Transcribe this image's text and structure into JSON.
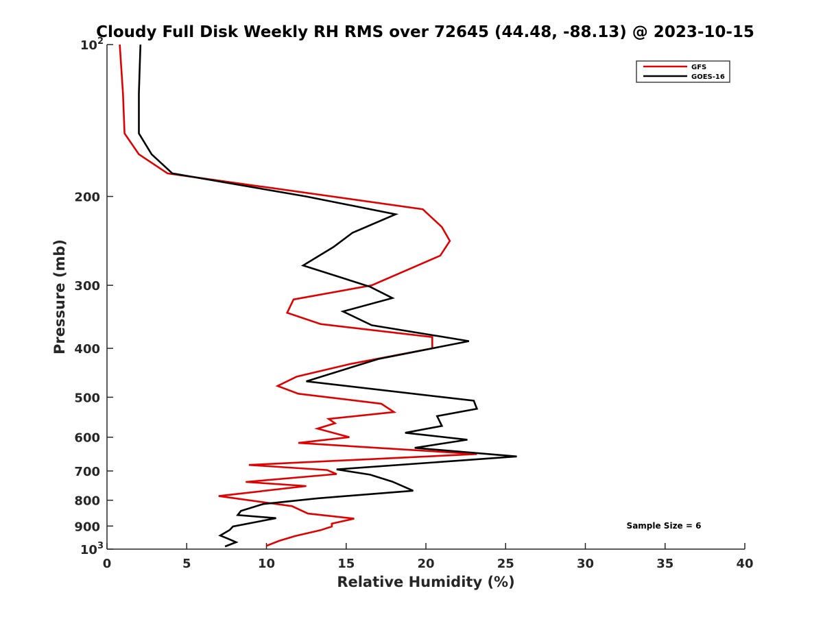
{
  "chart_data": {
    "type": "line",
    "title": "Cloudy Full Disk Weekly RH RMS over 72645 (44.48, -88.13) @ 2023-10-15",
    "xlabel": "Relative Humidity (%)",
    "ylabel": "Pressure (mb)",
    "xlim": [
      0,
      40
    ],
    "ylim": [
      100,
      1000
    ],
    "yscale": "log",
    "y_reversed": true,
    "grid": false,
    "legend_position": "top-right",
    "x_ticks": [
      "0",
      "5",
      "10",
      "15",
      "20",
      "25",
      "30",
      "35",
      "40"
    ],
    "x_tick_values": [
      0,
      5,
      10,
      15,
      20,
      25,
      30,
      35,
      40
    ],
    "y_ticks": [
      {
        "value": 100,
        "base": "10",
        "sup": "2"
      },
      {
        "value": 200,
        "label": "200"
      },
      {
        "value": 300,
        "label": "300"
      },
      {
        "value": 400,
        "label": "400"
      },
      {
        "value": 500,
        "label": "500"
      },
      {
        "value": 600,
        "label": "600"
      },
      {
        "value": 700,
        "label": "700"
      },
      {
        "value": 800,
        "label": "800"
      },
      {
        "value": 900,
        "label": "900"
      },
      {
        "value": 1000,
        "base": "10",
        "sup": "3"
      }
    ],
    "annotation": "Sample Size = 6",
    "series": [
      {
        "name": "GFS",
        "color": "#e00000",
        "points": [
          [
            0.8,
            100
          ],
          [
            1.0,
            125
          ],
          [
            1.1,
            150
          ],
          [
            2.0,
            165
          ],
          [
            3.8,
            180
          ],
          [
            19.8,
            212
          ],
          [
            21.0,
            230
          ],
          [
            21.5,
            245
          ],
          [
            20.9,
            262
          ],
          [
            16.6,
            300
          ],
          [
            11.7,
            320
          ],
          [
            11.3,
            340
          ],
          [
            13.4,
            358
          ],
          [
            20.4,
            380
          ],
          [
            20.4,
            400
          ],
          [
            15.2,
            430
          ],
          [
            11.9,
            455
          ],
          [
            10.7,
            475
          ],
          [
            12.0,
            492
          ],
          [
            17.2,
            515
          ],
          [
            18.0,
            535
          ],
          [
            13.9,
            552
          ],
          [
            14.3,
            563
          ],
          [
            13.2,
            577
          ],
          [
            15.2,
            600
          ],
          [
            12.0,
            616
          ],
          [
            23.2,
            648
          ],
          [
            8.9,
            681
          ],
          [
            13.8,
            697
          ],
          [
            14.4,
            710
          ],
          [
            8.7,
            736
          ],
          [
            12.5,
            750
          ],
          [
            7.0,
            785
          ],
          [
            11.6,
            822
          ],
          [
            12.6,
            850
          ],
          [
            15.5,
            870
          ],
          [
            14.1,
            890
          ],
          [
            14.1,
            902
          ],
          [
            13.4,
            917
          ],
          [
            11.8,
            942
          ],
          [
            10.8,
            963
          ],
          [
            10.0,
            985
          ]
        ]
      },
      {
        "name": "GOES-16",
        "color": "#000000",
        "points": [
          [
            2.1,
            100
          ],
          [
            2.0,
            125
          ],
          [
            2.0,
            150
          ],
          [
            2.8,
            165
          ],
          [
            4.1,
            180
          ],
          [
            12.5,
            200
          ],
          [
            18.1,
            217
          ],
          [
            15.4,
            236
          ],
          [
            14.2,
            252
          ],
          [
            12.3,
            274
          ],
          [
            16.5,
            302
          ],
          [
            17.9,
            318
          ],
          [
            14.8,
            338
          ],
          [
            16.6,
            360
          ],
          [
            22.7,
            387
          ],
          [
            17.0,
            420
          ],
          [
            12.5,
            465
          ],
          [
            23.0,
            508
          ],
          [
            23.2,
            527
          ],
          [
            20.7,
            545
          ],
          [
            21.0,
            570
          ],
          [
            18.7,
            588
          ],
          [
            22.6,
            607
          ],
          [
            19.3,
            630
          ],
          [
            25.7,
            655
          ],
          [
            14.4,
            695
          ],
          [
            16.5,
            712
          ],
          [
            17.9,
            735
          ],
          [
            19.2,
            766
          ],
          [
            13.2,
            793
          ],
          [
            9.8,
            814
          ],
          [
            8.4,
            840
          ],
          [
            8.2,
            856
          ],
          [
            10.6,
            868
          ],
          [
            7.9,
            902
          ],
          [
            7.7,
            916
          ],
          [
            7.1,
            940
          ],
          [
            7.5,
            951
          ],
          [
            8.1,
            969
          ],
          [
            7.4,
            988
          ]
        ]
      }
    ]
  }
}
